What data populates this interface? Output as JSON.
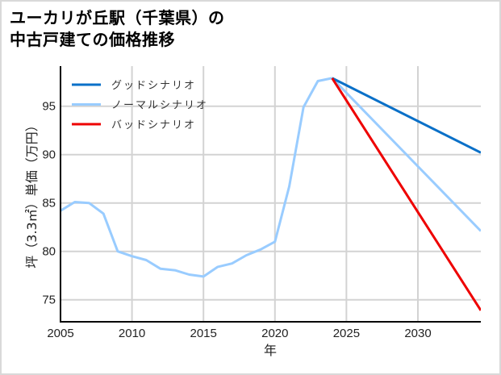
{
  "title": {
    "line1": "ユーカリが丘駅（千葉県）の",
    "line2": "中古戸建ての価格推移"
  },
  "colors": {
    "good": "#0a70c8",
    "normal": "#99ccff",
    "bad": "#ee0000",
    "grid": "#d3d3d3",
    "axis": "#000000",
    "border": "#d9d9d9"
  },
  "legend": [
    {
      "label": "グッドシナリオ",
      "color": "#0a70c8"
    },
    {
      "label": "ノーマルシナリオ",
      "color": "#99ccff"
    },
    {
      "label": "バッドシナリオ",
      "color": "#ee0000"
    }
  ],
  "axes": {
    "xlabel": "年",
    "ylabel": "坪（3.3㎡）単価（万円）",
    "xticks": [
      "2005",
      "2010",
      "2015",
      "2020",
      "2025",
      "2030"
    ],
    "yticks": [
      "75",
      "80",
      "85",
      "90",
      "95"
    ]
  },
  "chart_data": {
    "type": "line",
    "title": "ユーカリが丘駅（千葉県）の中古戸建ての価格推移",
    "xlabel": "年",
    "ylabel": "坪（3.3㎡）単価（万円）",
    "xlim": [
      2005,
      2034.4
    ],
    "ylim": [
      72.7,
      99.5
    ],
    "grid": true,
    "legend_position": "upper left",
    "series": [
      {
        "name": "ノーマルシナリオ (historical)",
        "x": [
          2005,
          2006,
          2007,
          2008,
          2009,
          2010,
          2011,
          2012,
          2013,
          2014,
          2015,
          2016,
          2017,
          2018,
          2019,
          2020,
          2021,
          2022,
          2023,
          2024
        ],
        "values": [
          84.2,
          85.1,
          85.0,
          83.9,
          80.0,
          79.5,
          79.1,
          78.2,
          78.05,
          77.6,
          77.4,
          78.4,
          78.75,
          79.6,
          80.2,
          81.0,
          86.7,
          94.9,
          97.6,
          97.9
        ]
      },
      {
        "name": "グッドシナリオ",
        "x": [
          2024,
          2034.4
        ],
        "values": [
          97.9,
          90.2
        ]
      },
      {
        "name": "ノーマルシナリオ",
        "x": [
          2024,
          2034.4
        ],
        "values": [
          97.9,
          82.1
        ]
      },
      {
        "name": "バッドシナリオ",
        "x": [
          2024,
          2034.4
        ],
        "values": [
          97.9,
          73.9
        ]
      }
    ]
  }
}
